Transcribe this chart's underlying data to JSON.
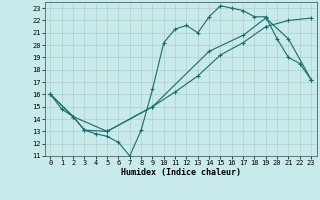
{
  "title": "",
  "xlabel": "Humidex (Indice chaleur)",
  "bg_color": "#c8eaea",
  "grid_color": "#b0d0d0",
  "line_color": "#1a6b6b",
  "xlim": [
    -0.5,
    23.5
  ],
  "ylim": [
    11,
    23.5
  ],
  "yticks": [
    11,
    12,
    13,
    14,
    15,
    16,
    17,
    18,
    19,
    20,
    21,
    22,
    23
  ],
  "xticks": [
    0,
    1,
    2,
    3,
    4,
    5,
    6,
    7,
    8,
    9,
    10,
    11,
    12,
    13,
    14,
    15,
    16,
    17,
    18,
    19,
    20,
    21,
    22,
    23
  ],
  "line1_x": [
    0,
    1,
    2,
    3,
    4,
    5,
    6,
    7,
    8,
    9,
    10,
    11,
    12,
    13,
    14,
    15,
    16,
    17,
    18,
    19,
    20,
    21,
    22,
    23
  ],
  "line1_y": [
    16,
    14.8,
    14.2,
    13.1,
    12.8,
    12.6,
    12.1,
    11.0,
    13.1,
    16.4,
    20.2,
    21.3,
    21.6,
    21.0,
    22.3,
    23.2,
    23.0,
    22.8,
    22.3,
    22.3,
    20.5,
    19.0,
    18.5,
    17.2
  ],
  "line2_x": [
    0,
    2,
    3,
    5,
    9,
    11,
    13,
    15,
    17,
    19,
    21,
    23
  ],
  "line2_y": [
    16,
    14.2,
    13.1,
    13.0,
    15.0,
    16.2,
    17.5,
    19.2,
    20.2,
    21.5,
    22.0,
    22.2
  ],
  "line3_x": [
    0,
    2,
    5,
    9,
    14,
    17,
    19,
    21,
    23
  ],
  "line3_y": [
    16,
    14.2,
    13.0,
    15.0,
    19.5,
    20.8,
    22.2,
    20.5,
    17.2
  ]
}
